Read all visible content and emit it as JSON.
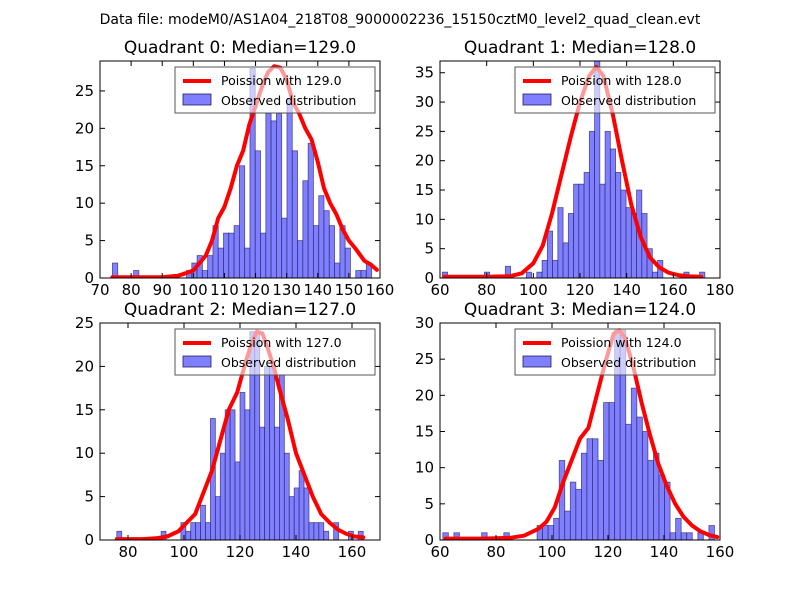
{
  "suptitle": "Data file: modeM0/AS1A04_218T08_9000002236_15150cztM0_level2_quad_clean.evt",
  "colors": {
    "bar_fill": "#7f7fff",
    "bar_edge": "#1f1f5f",
    "poisson_line": "#ff0000",
    "legend_edge": "#555555"
  },
  "chart_data": [
    {
      "type": "bar",
      "title": "Quadrant 0: Median=129.0",
      "median": 129.0,
      "legend": [
        "Poission with 129.0",
        "Observed distribution"
      ],
      "legend_position": "upper-right",
      "xlim": [
        70,
        160
      ],
      "ylim": [
        0,
        29
      ],
      "xticks": [
        70,
        80,
        90,
        100,
        110,
        120,
        130,
        140,
        150,
        160
      ],
      "yticks": [
        0,
        5,
        10,
        15,
        20,
        25
      ],
      "bin_start": 74.0,
      "bin_width": 1.7,
      "values": [
        2,
        0,
        0,
        0,
        1,
        0,
        0,
        0,
        0,
        0,
        0,
        0,
        0,
        0,
        1,
        2,
        3,
        1,
        3,
        7,
        4,
        6,
        6,
        7,
        15,
        4,
        28,
        17,
        6,
        22,
        21,
        22,
        8,
        24,
        17,
        5,
        13,
        18,
        7,
        11,
        9,
        7,
        2,
        7,
        4,
        0,
        1,
        1,
        2
      ],
      "poisson_x": [
        74,
        80,
        90,
        95,
        98,
        100,
        102,
        104,
        106,
        108,
        110,
        112,
        114,
        116,
        118,
        120,
        122,
        124,
        126,
        128,
        130,
        132,
        134,
        136,
        138,
        140,
        142,
        144,
        146,
        148,
        150,
        152,
        155,
        157,
        159
      ],
      "poisson_y": [
        0.1,
        0.1,
        0.1,
        0.3,
        0.7,
        1.0,
        2.0,
        3.0,
        5.0,
        8.0,
        9.5,
        12.0,
        15.0,
        17.0,
        20.5,
        23.0,
        25.5,
        27.5,
        28.3,
        28.1,
        26.5,
        23.5,
        22.0,
        20.0,
        18.5,
        15.5,
        12.0,
        10.0,
        8.5,
        6.5,
        5.0,
        4.0,
        2.3,
        1.8,
        1.1
      ]
    },
    {
      "type": "bar",
      "title": "Quadrant 1: Median=128.0",
      "median": 128.0,
      "legend": [
        "Poission with 128.0",
        "Observed distribution"
      ],
      "legend_position": "upper-right",
      "xlim": [
        60,
        180
      ],
      "ylim": [
        0,
        37
      ],
      "xticks": [
        60,
        80,
        100,
        120,
        140,
        160,
        180
      ],
      "yticks": [
        0,
        5,
        10,
        15,
        20,
        25,
        30,
        35
      ],
      "bin_start": 61.0,
      "bin_width": 2.25,
      "values": [
        1,
        0,
        0,
        0,
        0,
        0,
        0,
        0,
        1,
        0,
        0,
        0,
        2,
        0,
        0,
        0,
        1,
        0,
        1,
        3,
        8,
        3,
        12,
        6,
        11,
        16,
        16,
        18,
        25,
        37,
        16,
        25,
        22,
        18,
        15,
        12,
        11,
        15,
        11,
        5,
        1,
        3,
        0,
        0,
        0,
        0,
        1,
        0,
        0,
        1
      ],
      "poisson_x": [
        62,
        80,
        90,
        95,
        100,
        104,
        108,
        112,
        116,
        120,
        124,
        127,
        130,
        134,
        138,
        142,
        146,
        150,
        154,
        158,
        162,
        166,
        172
      ],
      "poisson_y": [
        0.2,
        0.2,
        0.3,
        0.8,
        2.5,
        5.5,
        11.0,
        17.5,
        24.0,
        30.0,
        34.5,
        36.0,
        34.5,
        28.0,
        20.0,
        12.5,
        7.0,
        3.5,
        1.8,
        0.9,
        0.5,
        0.3,
        0.2
      ]
    },
    {
      "type": "bar",
      "title": "Quadrant 2: Median=127.0",
      "median": 127.0,
      "legend": [
        "Poission with 127.0",
        "Observed distribution"
      ],
      "legend_position": "upper-right",
      "xlim": [
        70,
        170
      ],
      "ylim": [
        0,
        25
      ],
      "xticks": [
        80,
        100,
        120,
        140,
        160
      ],
      "yticks": [
        0,
        5,
        10,
        15,
        20,
        25
      ],
      "bin_start": 76.0,
      "bin_width": 1.76,
      "values": [
        1,
        0,
        0,
        0,
        0,
        0,
        0,
        0,
        0,
        1,
        0,
        0,
        0,
        2,
        1,
        2,
        2,
        4,
        2,
        14,
        5,
        10,
        15,
        15,
        9,
        17,
        15,
        24,
        24,
        13,
        20,
        20,
        13,
        19,
        10,
        5,
        6,
        8,
        6,
        2,
        2,
        2,
        1,
        0,
        2,
        0,
        0,
        1,
        0,
        1
      ],
      "poisson_x": [
        76,
        85,
        90,
        94,
        98,
        101,
        104,
        107,
        110,
        113,
        116,
        119,
        122,
        124,
        126,
        128,
        130,
        132,
        134,
        137,
        140,
        143,
        146,
        149,
        152,
        155,
        158,
        161,
        164
      ],
      "poisson_y": [
        0.1,
        0.1,
        0.2,
        0.4,
        1.0,
        2.0,
        3.0,
        5.5,
        8.0,
        11.5,
        15.0,
        17.0,
        20.5,
        22.5,
        24.0,
        23.8,
        22.0,
        20.0,
        17.5,
        14.0,
        10.0,
        7.5,
        5.0,
        3.0,
        2.0,
        1.2,
        0.7,
        0.4,
        0.3
      ]
    },
    {
      "type": "bar",
      "title": "Quadrant 3: Median=124.0",
      "median": 124.0,
      "legend": [
        "Poission with 124.0",
        "Observed distribution"
      ],
      "legend_position": "upper-right",
      "xlim": [
        60,
        160
      ],
      "ylim": [
        0,
        30
      ],
      "xticks": [
        60,
        80,
        100,
        120,
        140,
        160
      ],
      "yticks": [
        0,
        5,
        10,
        15,
        20,
        25,
        30
      ],
      "bin_start": 61.0,
      "bin_width": 1.98,
      "values": [
        1,
        0,
        1,
        0,
        0,
        0,
        0,
        1,
        0,
        0,
        0,
        1,
        0,
        0,
        0,
        0,
        0,
        2,
        2,
        2,
        3,
        11,
        4,
        8,
        7,
        12,
        14,
        14,
        11,
        19,
        19,
        29,
        29,
        16,
        21,
        17,
        15,
        11,
        12,
        9,
        8,
        1,
        3,
        1,
        1,
        0,
        1,
        0,
        2
      ],
      "poisson_x": [
        62,
        75,
        85,
        90,
        95,
        98,
        101,
        104,
        107,
        110,
        113,
        116,
        119,
        122,
        124,
        126,
        129,
        132,
        135,
        138,
        141,
        144,
        147,
        150,
        153,
        156,
        159
      ],
      "poisson_y": [
        0.2,
        0.2,
        0.3,
        0.6,
        1.5,
        2.5,
        4.5,
        8.0,
        11.0,
        14.0,
        15.5,
        20.0,
        24.5,
        28.5,
        29.0,
        28.0,
        24.0,
        19.0,
        14.5,
        10.5,
        7.5,
        5.0,
        3.2,
        2.0,
        1.2,
        0.7,
        0.4
      ]
    }
  ]
}
